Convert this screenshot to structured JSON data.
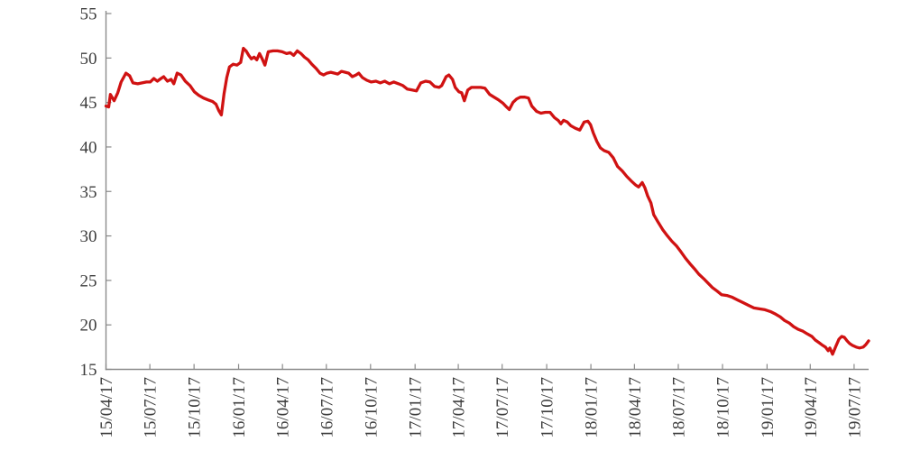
{
  "figure": {
    "background": "#ffffff",
    "axis_color": "#8a8a8a",
    "label_color": "#3c3c3c"
  },
  "chart_data": {
    "type": "line",
    "title": "",
    "xlabel": "",
    "ylabel": "",
    "grid": false,
    "legend": null,
    "x_axis": {
      "unit": "date (YY/MM/DD), weekly series; week 0 = 15/04/17",
      "xlim_weeks": [
        0,
        226
      ],
      "tick_labels": [
        "15/04/17",
        "15/07/17",
        "15/10/17",
        "16/01/17",
        "16/04/17",
        "16/07/17",
        "16/10/17",
        "17/01/17",
        "17/04/17",
        "17/07/17",
        "17/10/17",
        "18/01/17",
        "18/04/17",
        "18/07/17",
        "18/10/17",
        "19/01/17",
        "19/04/17",
        "19/07/17"
      ],
      "tick_positions_weeks": [
        0,
        13.0,
        26.1,
        39.3,
        52.3,
        65.3,
        78.4,
        91.6,
        104.4,
        117.4,
        130.6,
        143.7,
        156.6,
        169.6,
        182.7,
        195.9,
        208.7,
        221.7
      ]
    },
    "y_axis": {
      "ylim": [
        15,
        55
      ],
      "tick_values": [
        15,
        20,
        25,
        30,
        35,
        40,
        45,
        50,
        55
      ],
      "tick_labels": [
        "15",
        "20",
        "25",
        "30",
        "35",
        "40",
        "45",
        "50",
        "55"
      ]
    },
    "series": [
      {
        "name": "value",
        "color": "#d01212",
        "line_width": 3.3,
        "points_week_value": [
          [
            0,
            44.6
          ],
          [
            0.8,
            44.5
          ],
          [
            1.3,
            45.9
          ],
          [
            2.4,
            45.2
          ],
          [
            3.5,
            46.1
          ],
          [
            4.5,
            47.3
          ],
          [
            5.9,
            48.3
          ],
          [
            7,
            48
          ],
          [
            8,
            47.2
          ],
          [
            9.4,
            47.1
          ],
          [
            10.7,
            47.2
          ],
          [
            12,
            47.3
          ],
          [
            13.1,
            47.3
          ],
          [
            14.2,
            47.7
          ],
          [
            15.2,
            47.4
          ],
          [
            16.3,
            47.7
          ],
          [
            17.1,
            47.9
          ],
          [
            18.2,
            47.4
          ],
          [
            19.3,
            47.6
          ],
          [
            20.1,
            47.1
          ],
          [
            21.1,
            48.3
          ],
          [
            22.2,
            48.1
          ],
          [
            23.5,
            47.4
          ],
          [
            24.9,
            46.9
          ],
          [
            26.2,
            46.2
          ],
          [
            27.5,
            45.8
          ],
          [
            28.9,
            45.5
          ],
          [
            30.2,
            45.3
          ],
          [
            31.6,
            45.1
          ],
          [
            32.6,
            44.8
          ],
          [
            33.4,
            44.1
          ],
          [
            34.2,
            43.6
          ],
          [
            35,
            46
          ],
          [
            35.8,
            47.8
          ],
          [
            36.6,
            49
          ],
          [
            37.7,
            49.3
          ],
          [
            38.8,
            49.2
          ],
          [
            39.9,
            49.5
          ],
          [
            40.7,
            51.1
          ],
          [
            41.5,
            50.8
          ],
          [
            42.3,
            50.3
          ],
          [
            43.1,
            49.9
          ],
          [
            43.9,
            50.1
          ],
          [
            44.7,
            49.8
          ],
          [
            45.5,
            50.5
          ],
          [
            46.3,
            49.9
          ],
          [
            47.1,
            49.2
          ],
          [
            48.1,
            50.7
          ],
          [
            49.5,
            50.8
          ],
          [
            50.8,
            50.8
          ],
          [
            52.2,
            50.7
          ],
          [
            53.5,
            50.5
          ],
          [
            54.6,
            50.6
          ],
          [
            55.6,
            50.3
          ],
          [
            56.7,
            50.8
          ],
          [
            57.8,
            50.5
          ],
          [
            58.8,
            50.1
          ],
          [
            59.9,
            49.8
          ],
          [
            61,
            49.3
          ],
          [
            62.3,
            48.8
          ],
          [
            63.4,
            48.3
          ],
          [
            64.5,
            48.1
          ],
          [
            65.5,
            48.3
          ],
          [
            66.6,
            48.4
          ],
          [
            67.7,
            48.3
          ],
          [
            68.7,
            48.2
          ],
          [
            69.8,
            48.5
          ],
          [
            70.9,
            48.4
          ],
          [
            71.9,
            48.3
          ],
          [
            73,
            47.9
          ],
          [
            74.1,
            48.1
          ],
          [
            74.9,
            48.3
          ],
          [
            76,
            47.8
          ],
          [
            77.3,
            47.5
          ],
          [
            78.6,
            47.3
          ],
          [
            80,
            47.4
          ],
          [
            81.3,
            47.2
          ],
          [
            82.6,
            47.4
          ],
          [
            84,
            47.1
          ],
          [
            85.3,
            47.3
          ],
          [
            86.7,
            47.1
          ],
          [
            88,
            46.9
          ],
          [
            89.3,
            46.5
          ],
          [
            90.7,
            46.4
          ],
          [
            92,
            46.3
          ],
          [
            93.3,
            47.2
          ],
          [
            94.7,
            47.4
          ],
          [
            96,
            47.3
          ],
          [
            97.4,
            46.8
          ],
          [
            98.7,
            46.7
          ],
          [
            99.5,
            46.9
          ],
          [
            100.8,
            47.9
          ],
          [
            101.6,
            48.1
          ],
          [
            102.7,
            47.6
          ],
          [
            103.5,
            46.7
          ],
          [
            104.6,
            46.2
          ],
          [
            105.4,
            46.1
          ],
          [
            106.2,
            45.2
          ],
          [
            107.2,
            46.4
          ],
          [
            108.3,
            46.7
          ],
          [
            109.7,
            46.7
          ],
          [
            111,
            46.7
          ],
          [
            112.3,
            46.6
          ],
          [
            113.7,
            45.9
          ],
          [
            115,
            45.6
          ],
          [
            116.3,
            45.3
          ],
          [
            117.7,
            44.9
          ],
          [
            118.7,
            44.5
          ],
          [
            119.5,
            44.2
          ],
          [
            120.6,
            45
          ],
          [
            121.7,
            45.4
          ],
          [
            122.8,
            45.6
          ],
          [
            124.1,
            45.6
          ],
          [
            125.2,
            45.5
          ],
          [
            126.2,
            44.6
          ],
          [
            127.6,
            44
          ],
          [
            128.9,
            43.8
          ],
          [
            130.2,
            43.9
          ],
          [
            131.6,
            43.9
          ],
          [
            132.9,
            43.3
          ],
          [
            134,
            43
          ],
          [
            134.8,
            42.6
          ],
          [
            135.6,
            43
          ],
          [
            136.7,
            42.8
          ],
          [
            137.7,
            42.4
          ],
          [
            139.1,
            42.1
          ],
          [
            140.4,
            41.9
          ],
          [
            141.7,
            42.8
          ],
          [
            142.8,
            42.9
          ],
          [
            143.6,
            42.5
          ],
          [
            144.4,
            41.6
          ],
          [
            145.5,
            40.6
          ],
          [
            146.5,
            39.9
          ],
          [
            147.6,
            39.6
          ],
          [
            149,
            39.4
          ],
          [
            150.3,
            38.8
          ],
          [
            151.6,
            37.8
          ],
          [
            153,
            37.3
          ],
          [
            154.3,
            36.7
          ],
          [
            155.6,
            36.2
          ],
          [
            157,
            35.7
          ],
          [
            157.8,
            35.5
          ],
          [
            158.9,
            36
          ],
          [
            159.7,
            35.4
          ],
          [
            160.5,
            34.5
          ],
          [
            161.5,
            33.7
          ],
          [
            162.3,
            32.4
          ],
          [
            163.7,
            31.5
          ],
          [
            165,
            30.7
          ],
          [
            166.4,
            30
          ],
          [
            167.7,
            29.4
          ],
          [
            169,
            28.9
          ],
          [
            170.4,
            28.2
          ],
          [
            171.7,
            27.5
          ],
          [
            173,
            26.9
          ],
          [
            174.4,
            26.3
          ],
          [
            175.7,
            25.7
          ],
          [
            177.1,
            25.2
          ],
          [
            178.4,
            24.7
          ],
          [
            179.7,
            24.2
          ],
          [
            181.1,
            23.8
          ],
          [
            182.4,
            23.4
          ],
          [
            184,
            23.3
          ],
          [
            185.6,
            23.1
          ],
          [
            187.2,
            22.8
          ],
          [
            188.8,
            22.5
          ],
          [
            190.4,
            22.2
          ],
          [
            192,
            21.9
          ],
          [
            193.6,
            21.8
          ],
          [
            195.3,
            21.7
          ],
          [
            196.9,
            21.5
          ],
          [
            198.5,
            21.2
          ],
          [
            199.8,
            20.9
          ],
          [
            201.1,
            20.5
          ],
          [
            202.5,
            20.2
          ],
          [
            203.8,
            19.8
          ],
          [
            205.1,
            19.5
          ],
          [
            206.5,
            19.3
          ],
          [
            207.8,
            19
          ],
          [
            209.2,
            18.7
          ],
          [
            210.2,
            18.3
          ],
          [
            211.3,
            18
          ],
          [
            212.4,
            17.7
          ],
          [
            213.2,
            17.5
          ],
          [
            214,
            17.1
          ],
          [
            214.5,
            17.4
          ],
          [
            215.3,
            16.7
          ],
          [
            216.4,
            17.7
          ],
          [
            217.2,
            18.4
          ],
          [
            218,
            18.7
          ],
          [
            218.8,
            18.6
          ],
          [
            219.6,
            18.2
          ],
          [
            220.4,
            17.9
          ],
          [
            221.2,
            17.7
          ],
          [
            222.3,
            17.5
          ],
          [
            223.3,
            17.4
          ],
          [
            224.4,
            17.5
          ],
          [
            225.2,
            17.8
          ],
          [
            226,
            18.2
          ]
        ]
      }
    ]
  }
}
